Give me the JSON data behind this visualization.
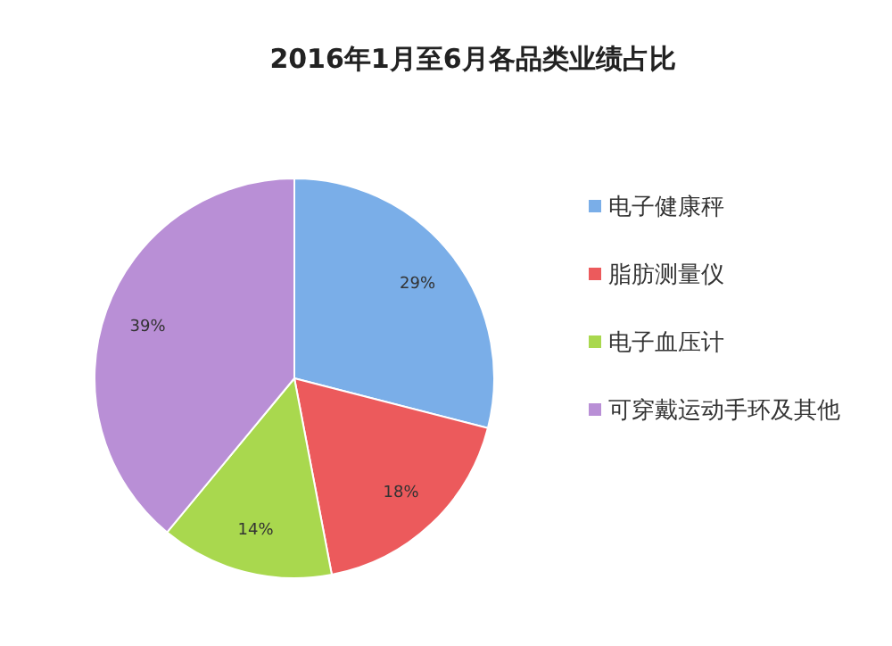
{
  "chart_data": {
    "type": "pie",
    "title": "2016年1月至6月各品类业绩占比",
    "categories": [
      "电子健康秤",
      "脂肪测量仪",
      "电子血压计",
      "可穿戴运动手环及其他"
    ],
    "values": [
      29,
      18,
      14,
      39
    ],
    "value_labels": [
      "29%",
      "18%",
      "14%",
      "39%"
    ],
    "colors": [
      "#7aaee8",
      "#ec5a5c",
      "#a9d84e",
      "#b98fd6"
    ],
    "legend": "right"
  }
}
